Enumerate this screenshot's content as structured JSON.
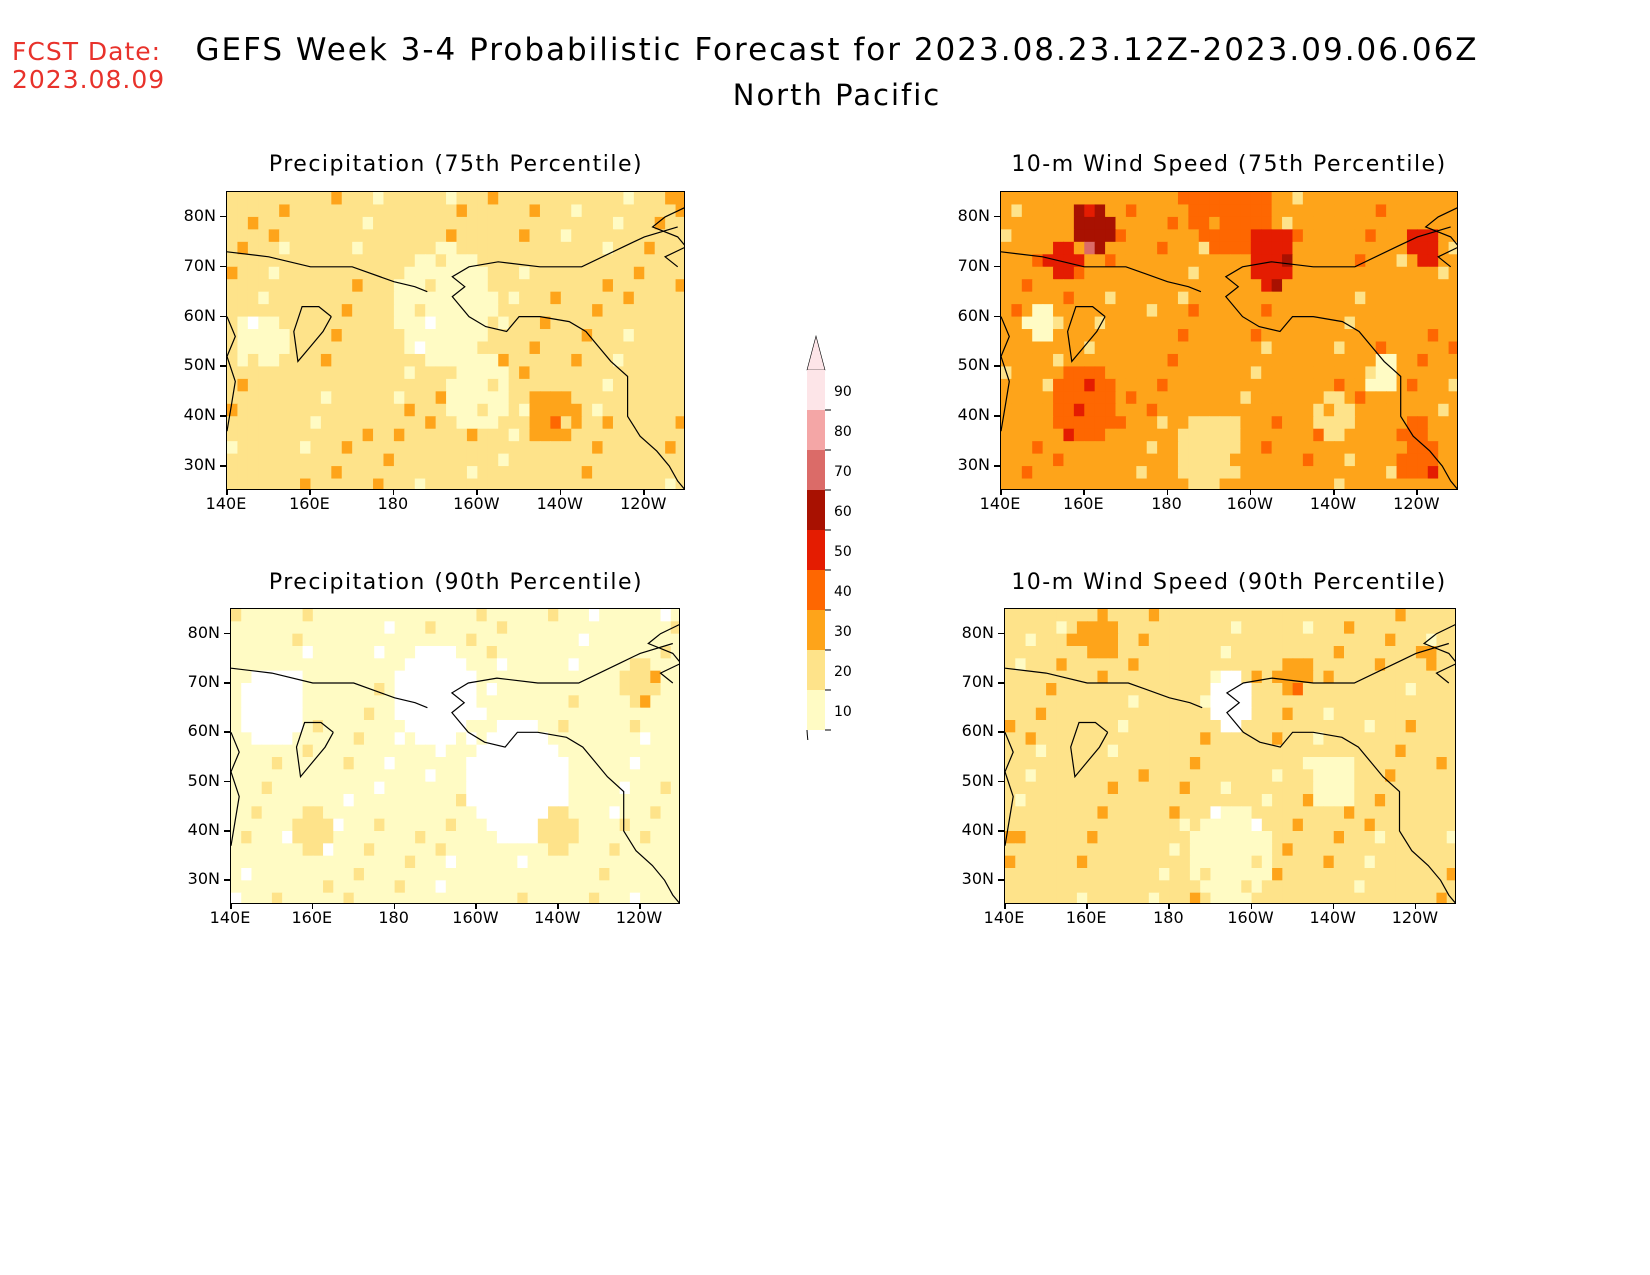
{
  "fcst_date": {
    "label": "FCST Date:",
    "value": "2023.08.09"
  },
  "title": "GEFS Week 3-4 Probabilistic Forecast for 2023.08.23.12Z-2023.09.06.06Z",
  "subtitle": "North Pacific",
  "lat_ticks": [
    "80N",
    "70N",
    "60N",
    "50N",
    "40N",
    "30N"
  ],
  "lon_ticks": [
    "140E",
    "160E",
    "180",
    "160W",
    "140W",
    "120W"
  ],
  "panels": [
    {
      "id": "precip-75",
      "title": "Precipitation (75th Percentile)",
      "base_level": 20,
      "hotspots": [
        {
          "lon": -142,
          "lat": 40,
          "level": 30,
          "r": 6
        },
        {
          "lon": -141,
          "lat": 39,
          "level": 40,
          "r": 2
        },
        {
          "lon": 173,
          "lat": 37,
          "level": 30,
          "r": 1.5
        },
        {
          "lon": -112,
          "lat": 84,
          "level": 30,
          "r": 3
        }
      ],
      "low_zones": [
        {
          "lon": -168,
          "lat": 62,
          "level": 10,
          "r": 12
        },
        {
          "lon": -160,
          "lat": 45,
          "level": 10,
          "r": 8
        },
        {
          "lon": 148,
          "lat": 55,
          "level": 10,
          "r": 6
        }
      ]
    },
    {
      "id": "wind-75",
      "title": "10-m Wind Speed (75th Percentile)",
      "base_level": 30,
      "hotspots": [
        {
          "lon": 162,
          "lat": 78,
          "level": 60,
          "r": 5
        },
        {
          "lon": 155,
          "lat": 72,
          "level": 50,
          "r": 4
        },
        {
          "lon": -155,
          "lat": 72,
          "level": 50,
          "r": 6
        },
        {
          "lon": -118,
          "lat": 74,
          "level": 50,
          "r": 4
        },
        {
          "lon": 160,
          "lat": 42,
          "level": 40,
          "r": 8
        },
        {
          "lon": -165,
          "lat": 82,
          "level": 40,
          "r": 10
        },
        {
          "lon": -120,
          "lat": 33,
          "level": 40,
          "r": 6
        }
      ],
      "low_zones": [
        {
          "lon": -170,
          "lat": 32,
          "level": 20,
          "r": 8
        },
        {
          "lon": -140,
          "lat": 40,
          "level": 20,
          "r": 4
        },
        {
          "lon": -128,
          "lat": 48,
          "level": 10,
          "r": 4
        },
        {
          "lon": 150,
          "lat": 58,
          "level": 10,
          "r": 4
        }
      ]
    },
    {
      "id": "precip-90",
      "title": "Precipitation (90th Percentile)",
      "base_level": 10,
      "hotspots": [
        {
          "lon": 160,
          "lat": 40,
          "level": 20,
          "r": 5
        },
        {
          "lon": -140,
          "lat": 40,
          "level": 20,
          "r": 4
        },
        {
          "lon": -120,
          "lat": 70,
          "level": 20,
          "r": 4
        }
      ],
      "low_zones": [
        {
          "lon": -170,
          "lat": 67,
          "level": 0,
          "r": 10
        },
        {
          "lon": -150,
          "lat": 50,
          "level": 0,
          "r": 12
        },
        {
          "lon": 150,
          "lat": 65,
          "level": 0,
          "r": 8
        }
      ]
    },
    {
      "id": "wind-90",
      "title": "10-m Wind Speed (90th Percentile)",
      "base_level": 20,
      "hotspots": [
        {
          "lon": 163,
          "lat": 79,
          "level": 30,
          "r": 5
        },
        {
          "lon": -150,
          "lat": 72,
          "level": 30,
          "r": 4
        },
        {
          "lon": -118,
          "lat": 75,
          "level": 30,
          "r": 3
        },
        {
          "lon": 140,
          "lat": 40,
          "level": 30,
          "r": 2
        }
      ],
      "low_zones": [
        {
          "lon": -165,
          "lat": 35,
          "level": 10,
          "r": 10
        },
        {
          "lon": -140,
          "lat": 50,
          "level": 10,
          "r": 6
        },
        {
          "lon": -165,
          "lat": 66,
          "level": 0,
          "r": 6
        }
      ]
    }
  ],
  "colorbar": {
    "levels": [
      10,
      20,
      30,
      40,
      50,
      60,
      70,
      80,
      90
    ],
    "colors": [
      "#fffbc4",
      "#fee38a",
      "#fea41a",
      "#fe6701",
      "#e41c01",
      "#a81101",
      "#db6b68",
      "#f4a6a6",
      "#fde5e8"
    ]
  }
}
